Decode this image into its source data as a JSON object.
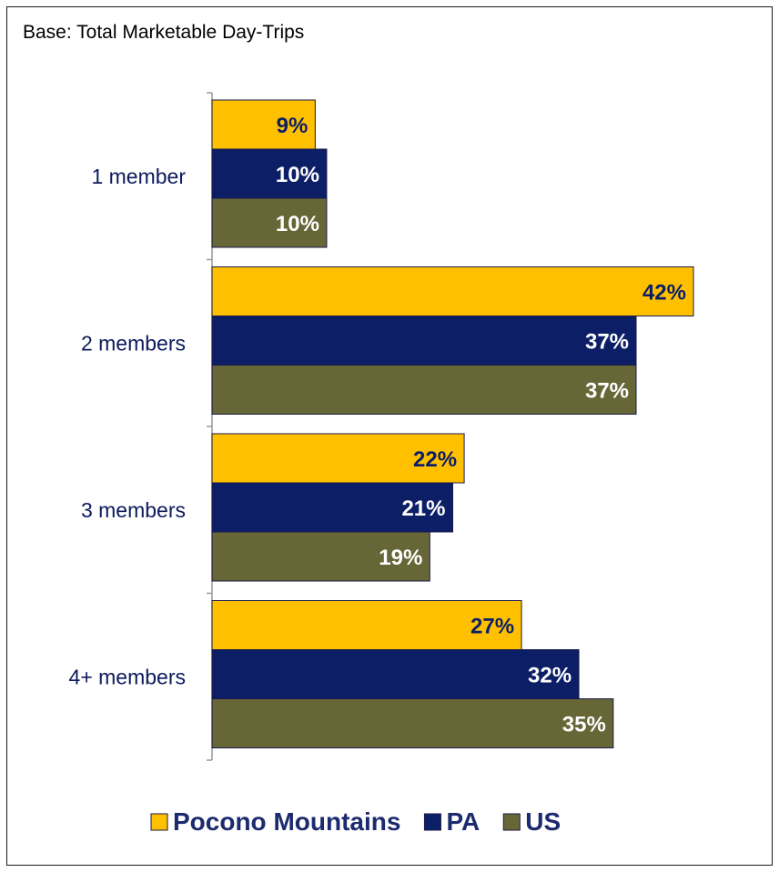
{
  "base_note": "Base: Total Marketable Day-Trips",
  "colors": {
    "Pocono Mountains": "#ffc000",
    "PA": "#0c1f66",
    "US": "#676637",
    "bar_outline": "#1a1a4a",
    "axis": "#999999"
  },
  "chart_data": {
    "type": "bar",
    "orientation": "horizontal",
    "categories": [
      "1 member",
      "2 members",
      "3 members",
      "4+ members"
    ],
    "series": [
      {
        "name": "Pocono Mountains",
        "values": [
          9,
          42,
          22,
          27
        ]
      },
      {
        "name": "PA",
        "values": [
          10,
          37,
          21,
          32
        ]
      },
      {
        "name": "US",
        "values": [
          10,
          37,
          19,
          35
        ]
      }
    ],
    "value_labels": [
      [
        "9%",
        "42%",
        "22%",
        "27%"
      ],
      [
        "10%",
        "37%",
        "21%",
        "32%"
      ],
      [
        "10%",
        "37%",
        "19%",
        "35%"
      ]
    ],
    "xlim": [
      0,
      42
    ],
    "grid": false,
    "legend_position": "bottom"
  }
}
